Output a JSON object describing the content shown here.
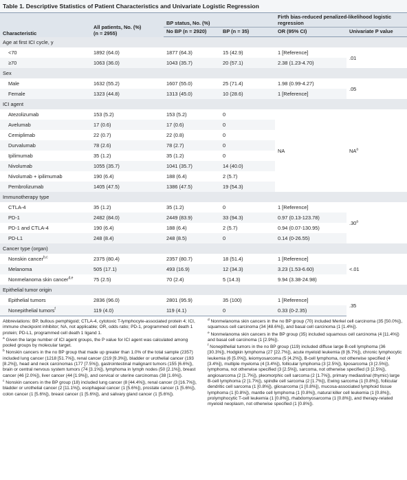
{
  "title": "Table 1. Descriptive Statistics of Patient Characteristics and Univariate Logistic Regression",
  "header": {
    "characteristic": "Characteristic",
    "all_patients": "All patients, No. (%)",
    "all_n": "(n = 2955)",
    "bp_status": "BP status, No. (%)",
    "no_bp": "No BP (n = 2920)",
    "bp": "BP (n = 35)",
    "firth": "Firth bias-reduced penalized-likelihood logistic regression",
    "or": "OR (95% CI)",
    "p_value": "Univariate P value"
  },
  "sections": [
    {
      "title": "Age at first ICI cycle, y",
      "p_value": ".01",
      "rows": [
        {
          "label": "<70",
          "all": "1892 (64.0)",
          "no_bp": "1877 (64.3)",
          "bp": "15 (42.9)",
          "or": "1 [Reference]"
        },
        {
          "label": "≥70",
          "all": "1063 (36.0)",
          "no_bp": "1043 (35.7)",
          "bp": "20 (57.1)",
          "or": "2.38 (1.23-4.70)"
        }
      ]
    },
    {
      "title": "Sex",
      "p_value": ".05",
      "rows": [
        {
          "label": "Male",
          "all": "1632 (55.2)",
          "no_bp": "1607 (55.0)",
          "bp": "25 (71.4)",
          "or": "1.98 (0.99-4.27)"
        },
        {
          "label": "Female",
          "all": "1323 (44.8)",
          "no_bp": "1313 (45.0)",
          "bp": "10 (28.6)",
          "or": "1 [Reference]"
        }
      ]
    },
    {
      "title": "ICI agent",
      "or_span": "NA",
      "p_value": "NA",
      "p_sup": "a",
      "rows": [
        {
          "label": "Atezolizumab",
          "all": "153 (5.2)",
          "no_bp": "153 (5.2)",
          "bp": "0"
        },
        {
          "label": "Avelumab",
          "all": "17 (0.6)",
          "no_bp": "17 (0.6)",
          "bp": "0"
        },
        {
          "label": "Cemiplimab",
          "all": "22 (0.7)",
          "no_bp": "22 (0.8)",
          "bp": "0"
        },
        {
          "label": "Durvalumab",
          "all": "78 (2.6)",
          "no_bp": "78 (2.7)",
          "bp": "0"
        },
        {
          "label": "Ipilimumab",
          "all": "35 (1.2)",
          "no_bp": "35 (1.2)",
          "bp": "0"
        },
        {
          "label": "Nivolumab",
          "all": "1055 (35.7)",
          "no_bp": "1041 (35.7)",
          "bp": "14 (40.0)"
        },
        {
          "label": "Nivolumab + ipilimumab",
          "all": "190 (6.4)",
          "no_bp": "188 (6.4)",
          "bp": "2 (5.7)"
        },
        {
          "label": "Pembrolizumab",
          "all": "1405 (47.5)",
          "no_bp": "1386 (47.5)",
          "bp": "19 (54.3)"
        }
      ]
    },
    {
      "title": "Immunotherapy type",
      "p_value": ".30",
      "p_sup": "a",
      "rows": [
        {
          "label": "CTLA-4",
          "all": "35 (1.2)",
          "no_bp": "35 (1.2)",
          "bp": "0",
          "or": "1 [Reference]"
        },
        {
          "label": "PD-1",
          "all": "2482 (84.0)",
          "no_bp": "2449 (83.9)",
          "bp": "33 (94.3)",
          "or": "0.97 (0.13-123.78)"
        },
        {
          "label": "PD-1 and CTLA-4",
          "all": "190 (6.4)",
          "no_bp": "188 (6.4)",
          "bp": "2 (5.7)",
          "or": "0.94 (0.07-130.95)"
        },
        {
          "label": "PD-L1",
          "all": "248 (8.4)",
          "no_bp": "248 (8.5)",
          "bp": "0",
          "or": "0.14 (0-26.55)"
        }
      ]
    },
    {
      "title": "Cancer type (organ)",
      "p_value": "<.01",
      "rows": [
        {
          "label": "Nonskin cancer",
          "sup": "b,c",
          "all": "2375 (80.4)",
          "no_bp": "2357 (80.7)",
          "bp": "18 (51.4)",
          "or": "1 [Reference]"
        },
        {
          "label": "Melanoma",
          "all": "505 (17.1)",
          "no_bp": "493 (16.9)",
          "bp": "12 (34.3)",
          "or": "3.23 (1.53-6.60)"
        },
        {
          "label": "Nonmelanoma skin cancer",
          "sup": "d,e",
          "all": "75 (2.5)",
          "no_bp": "70 (2.4)",
          "bp": "5 (14.3)",
          "or": "9.94 (3.38-24.98)"
        }
      ]
    },
    {
      "title": "Epithelial tumor origin",
      "p_value": ".35",
      "rows": [
        {
          "label": "Epithelial tumors",
          "all": "2836 (96.0)",
          "no_bp": "2801 (95.9)",
          "bp": "35 (100)",
          "or": "1 [Reference]"
        },
        {
          "label": "Nonepithelial tumors",
          "sup": "f",
          "all": "119 (4.0)",
          "no_bp": "119 (4.1)",
          "bp": "0",
          "or": "0.33 (0-2.35)"
        }
      ]
    }
  ],
  "abbreviations": "Abbreviations: BP, bullous pemphigoid; CTLA-4, cytotoxic T-lymphocyte-associated protein 4; ICI, immune checkpoint inhibitor; NA, not applicable; OR, odds ratio; PD-1, programmed cell death 1 protein; PD-L1, programmed cell death 1 ligand 1.",
  "footnotes": [
    {
      "mark": "a",
      "text": "Given the large number of ICI agent groups, the P value for ICI agent was calculated among pooled groups by molecular target."
    },
    {
      "mark": "b",
      "text": "Nonskin cancers in the no BP group that made up greater than 1.0% of the total sample (2357) included lung cancer (1218 [51.7%]), renal cancer (219 [9.3%]), bladder or urothelial cancer (193 [8.2%]), head and neck carcinomas (177 [7.5%]), gastrointestinal malignant tumors (155 [6.6%]), brain or central nervous system tumors (74 [3.1%]), lymphoma in lymph nodes (50 [2.1%]), breast cancer (46 [2.0%]), liver cancer (44 [1.9%]), and cervical or uterine carcinomas (38 [1.6%])."
    },
    {
      "mark": "c",
      "text": "Nonskin cancers in the BP group (18) included lung cancer (8 [44.4%]), renal cancer (3 [16.7%]), bladder or urothelial cancer (2 [11.1%]), esophageal cancer (1 [5.6%]), prostate cancer (1 [5.6%]), colon cancer (1 [5.6%]), breast cancer (1 [5.6%]), and salivary gland cancer (1 [5.6%])."
    },
    {
      "mark": "d",
      "text": "Nonmelanoma skin cancers in the no BP group (70) included Merkel cell carcinoma (35 [50.0%]), squamous cell carcinoma (34 [48.6%]), and basal cell carcinoma (1 [1.4%])."
    },
    {
      "mark": "e",
      "text": "Nonmelanoma skin cancers in the BP group (35) included squamous cell carcinoma (4 [11.4%]) and basal cell carcinoma (1 [2.9%])."
    },
    {
      "mark": "f",
      "text": "Nonepithelial tumors in the no BP group (119) included diffuse large B-cell lymphoma (36 [30.3%]), Hodgkin lymphoma (27 [22.7%]), acute myeloid leukemia (8 [6.7%]), chronic lymphocytic leukemia (6 [5.0%]), leiomyosarcoma (5 [4.2%]), B-cell lymphoma, not otherwise specified (4 [3.4%]), multiple myeloma (4 [3.4%]), follicular lymphoma (3 [2.5%]), liposarcoma (3 [2.5%]), lymphoma, not otherwise specified (3 [2.5%]), sarcoma, not otherwise specified (3 [2.5%]), angiosarcoma (2 [1.7%]), pleomorphic cell sarcoma (2 [1.7%]), primary mediastinal (thymic) large B-cell lymphoma (2 [1.7%]), spindle cell sarcoma (2 [1.7%]), Ewing sarcoma (1 [0.8%]), follicular dendritic cell sarcoma (1 [0.8%]), gliosarcoma (1 [0.8%]), mucosa-associated lymphoid tissue lymphoma (1 [0.8%]), mantle cell lymphoma (1 [0.8%]), natural killer cell leukemia (1 [0.8%]), prolymphocytic T-cell leukemia (1 [0.8%]), rhabdomyosarcoma (1 [0.8%]), and therapy-related myeloid neoplasm, not otherwise specified (1 [0.8%])."
    }
  ]
}
